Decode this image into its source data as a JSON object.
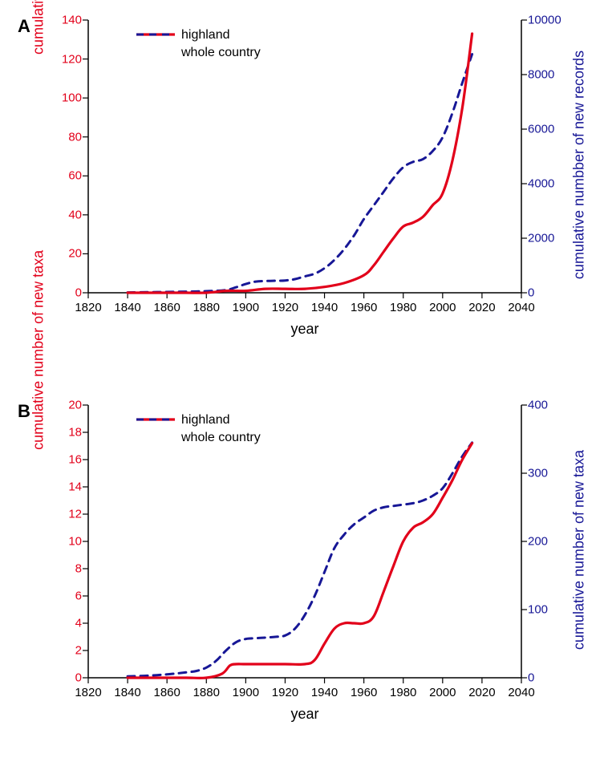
{
  "colors": {
    "highland": "#e2001a",
    "country": "#171796",
    "axis": "#000000",
    "bg": "#ffffff"
  },
  "line_styles": {
    "highland": {
      "width": 3.2,
      "dash": ""
    },
    "country": {
      "width": 3.0,
      "dash": "9 7"
    }
  },
  "legend": {
    "items": [
      {
        "key": "highland",
        "label": "highland"
      },
      {
        "key": "country",
        "label": "whole country"
      }
    ]
  },
  "x_axis": {
    "label": "year",
    "min": 1820,
    "max": 2040,
    "ticks": [
      1820,
      1840,
      1860,
      1880,
      1900,
      1920,
      1940,
      1960,
      1980,
      2000,
      2020,
      2040
    ],
    "fontsize": 15,
    "title_fontsize": 18
  },
  "panel_a": {
    "label": "A",
    "left_axis": {
      "label": "cumulative number of new records",
      "color": "#e2001a",
      "min": 0,
      "max": 140,
      "ticks": [
        0,
        20,
        40,
        60,
        80,
        100,
        120,
        140
      ]
    },
    "right_axis": {
      "label": "cumulative numbber of new records",
      "color": "#171796",
      "min": 0,
      "max": 10000,
      "ticks": [
        0,
        2000,
        4000,
        6000,
        8000,
        10000
      ]
    },
    "series": {
      "highland": {
        "axis": "left",
        "points": [
          [
            1840,
            0
          ],
          [
            1850,
            0
          ],
          [
            1860,
            0
          ],
          [
            1870,
            0
          ],
          [
            1880,
            0
          ],
          [
            1890,
            1
          ],
          [
            1900,
            1
          ],
          [
            1910,
            2
          ],
          [
            1920,
            2
          ],
          [
            1930,
            2
          ],
          [
            1940,
            3
          ],
          [
            1950,
            5
          ],
          [
            1960,
            9
          ],
          [
            1965,
            14
          ],
          [
            1970,
            21
          ],
          [
            1975,
            28
          ],
          [
            1980,
            34
          ],
          [
            1985,
            36
          ],
          [
            1990,
            39
          ],
          [
            1995,
            45
          ],
          [
            2000,
            51
          ],
          [
            2005,
            68
          ],
          [
            2010,
            95
          ],
          [
            2015,
            133
          ]
        ]
      },
      "country": {
        "axis": "right",
        "points": [
          [
            1840,
            10
          ],
          [
            1850,
            20
          ],
          [
            1860,
            30
          ],
          [
            1870,
            40
          ],
          [
            1880,
            60
          ],
          [
            1890,
            100
          ],
          [
            1895,
            200
          ],
          [
            1900,
            320
          ],
          [
            1905,
            410
          ],
          [
            1910,
            430
          ],
          [
            1915,
            440
          ],
          [
            1920,
            450
          ],
          [
            1925,
            500
          ],
          [
            1930,
            600
          ],
          [
            1935,
            700
          ],
          [
            1940,
            900
          ],
          [
            1945,
            1200
          ],
          [
            1950,
            1600
          ],
          [
            1955,
            2100
          ],
          [
            1960,
            2700
          ],
          [
            1965,
            3200
          ],
          [
            1970,
            3700
          ],
          [
            1975,
            4200
          ],
          [
            1980,
            4600
          ],
          [
            1985,
            4800
          ],
          [
            1990,
            4900
          ],
          [
            1995,
            5200
          ],
          [
            2000,
            5700
          ],
          [
            2005,
            6600
          ],
          [
            2010,
            7700
          ],
          [
            2015,
            8750
          ]
        ]
      }
    }
  },
  "panel_b": {
    "label": "B",
    "left_axis": {
      "label": "cumulative number of new taxa",
      "color": "#e2001a",
      "min": 0,
      "max": 20,
      "ticks": [
        0,
        2,
        4,
        6,
        8,
        10,
        12,
        14,
        16,
        18,
        20
      ]
    },
    "right_axis": {
      "label": "cumulative number of new taxa",
      "color": "#171796",
      "min": 0,
      "max": 400,
      "ticks": [
        0,
        100,
        200,
        300,
        400
      ]
    },
    "series": {
      "highland": {
        "axis": "left",
        "points": [
          [
            1840,
            0
          ],
          [
            1850,
            0
          ],
          [
            1860,
            0
          ],
          [
            1870,
            0
          ],
          [
            1880,
            0
          ],
          [
            1888,
            0.3
          ],
          [
            1892,
            0.9
          ],
          [
            1895,
            1
          ],
          [
            1900,
            1
          ],
          [
            1910,
            1
          ],
          [
            1920,
            1
          ],
          [
            1930,
            1
          ],
          [
            1935,
            1.3
          ],
          [
            1940,
            2.5
          ],
          [
            1945,
            3.6
          ],
          [
            1950,
            4
          ],
          [
            1955,
            4
          ],
          [
            1960,
            4
          ],
          [
            1965,
            4.5
          ],
          [
            1970,
            6.3
          ],
          [
            1975,
            8.2
          ],
          [
            1980,
            10
          ],
          [
            1985,
            11
          ],
          [
            1990,
            11.4
          ],
          [
            1995,
            12.0
          ],
          [
            2000,
            13.2
          ],
          [
            2005,
            14.5
          ],
          [
            2010,
            16
          ],
          [
            2015,
            17.2
          ]
        ]
      },
      "country": {
        "axis": "right",
        "points": [
          [
            1840,
            2
          ],
          [
            1850,
            3
          ],
          [
            1860,
            5
          ],
          [
            1870,
            8
          ],
          [
            1875,
            10
          ],
          [
            1880,
            15
          ],
          [
            1885,
            25
          ],
          [
            1890,
            40
          ],
          [
            1895,
            52
          ],
          [
            1900,
            57
          ],
          [
            1905,
            58
          ],
          [
            1910,
            59
          ],
          [
            1915,
            60
          ],
          [
            1920,
            62
          ],
          [
            1925,
            72
          ],
          [
            1930,
            92
          ],
          [
            1935,
            120
          ],
          [
            1940,
            155
          ],
          [
            1945,
            190
          ],
          [
            1950,
            210
          ],
          [
            1955,
            225
          ],
          [
            1960,
            235
          ],
          [
            1965,
            245
          ],
          [
            1970,
            250
          ],
          [
            1975,
            252
          ],
          [
            1980,
            254
          ],
          [
            1985,
            256
          ],
          [
            1990,
            260
          ],
          [
            1995,
            267
          ],
          [
            2000,
            278
          ],
          [
            2005,
            300
          ],
          [
            2010,
            325
          ],
          [
            2015,
            345
          ]
        ]
      }
    }
  }
}
